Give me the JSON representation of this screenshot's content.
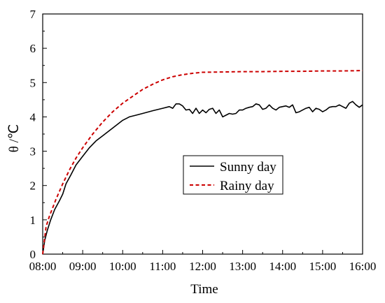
{
  "chart_data": {
    "type": "line",
    "title": "",
    "xlabel": "Time",
    "ylabel": "θ /℃",
    "x_ticks": [
      "08:00",
      "09:00",
      "10:00",
      "11:00",
      "12:00",
      "13:00",
      "14:00",
      "15:00",
      "16:00"
    ],
    "y_ticks": [
      "0",
      "1",
      "2",
      "3",
      "4",
      "5",
      "6",
      "7"
    ],
    "xlim": [
      "08:00",
      "16:00"
    ],
    "ylim": [
      0,
      7
    ],
    "grid": false,
    "legend_position": "center-right",
    "series": [
      {
        "name": "Sunny day",
        "color": "#000000",
        "style": "solid",
        "points": [
          [
            "08:00",
            0.0
          ],
          [
            "08:03",
            0.4
          ],
          [
            "08:07",
            0.7
          ],
          [
            "08:12",
            1.0
          ],
          [
            "08:18",
            1.3
          ],
          [
            "08:25",
            1.55
          ],
          [
            "08:30",
            1.75
          ],
          [
            "08:35",
            2.05
          ],
          [
            "08:42",
            2.3
          ],
          [
            "08:50",
            2.6
          ],
          [
            "09:00",
            2.85
          ],
          [
            "09:10",
            3.1
          ],
          [
            "09:20",
            3.3
          ],
          [
            "09:30",
            3.45
          ],
          [
            "09:40",
            3.6
          ],
          [
            "09:50",
            3.75
          ],
          [
            "10:00",
            3.9
          ],
          [
            "10:10",
            4.0
          ],
          [
            "10:20",
            4.05
          ],
          [
            "10:30",
            4.1
          ],
          [
            "10:45",
            4.18
          ],
          [
            "11:00",
            4.25
          ],
          [
            "11:10",
            4.3
          ],
          [
            "11:15",
            4.25
          ],
          [
            "11:20",
            4.38
          ],
          [
            "11:25",
            4.38
          ],
          [
            "11:30",
            4.32
          ],
          [
            "11:35",
            4.2
          ],
          [
            "11:40",
            4.22
          ],
          [
            "11:45",
            4.1
          ],
          [
            "11:50",
            4.25
          ],
          [
            "11:55",
            4.1
          ],
          [
            "12:00",
            4.2
          ],
          [
            "12:05",
            4.12
          ],
          [
            "12:10",
            4.22
          ],
          [
            "12:15",
            4.25
          ],
          [
            "12:20",
            4.1
          ],
          [
            "12:25",
            4.2
          ],
          [
            "12:30",
            4.0
          ],
          [
            "12:35",
            4.05
          ],
          [
            "12:40",
            4.1
          ],
          [
            "12:45",
            4.08
          ],
          [
            "12:50",
            4.1
          ],
          [
            "12:55",
            4.2
          ],
          [
            "13:00",
            4.2
          ],
          [
            "13:05",
            4.25
          ],
          [
            "13:10",
            4.28
          ],
          [
            "13:15",
            4.3
          ],
          [
            "13:20",
            4.38
          ],
          [
            "13:25",
            4.35
          ],
          [
            "13:30",
            4.22
          ],
          [
            "13:35",
            4.25
          ],
          [
            "13:40",
            4.35
          ],
          [
            "13:45",
            4.25
          ],
          [
            "13:50",
            4.2
          ],
          [
            "13:55",
            4.28
          ],
          [
            "14:00",
            4.3
          ],
          [
            "14:05",
            4.32
          ],
          [
            "14:10",
            4.28
          ],
          [
            "14:15",
            4.35
          ],
          [
            "14:20",
            4.12
          ],
          [
            "14:25",
            4.15
          ],
          [
            "14:30",
            4.2
          ],
          [
            "14:35",
            4.25
          ],
          [
            "14:40",
            4.28
          ],
          [
            "14:45",
            4.15
          ],
          [
            "14:50",
            4.25
          ],
          [
            "14:55",
            4.22
          ],
          [
            "15:00",
            4.15
          ],
          [
            "15:05",
            4.2
          ],
          [
            "15:10",
            4.28
          ],
          [
            "15:15",
            4.3
          ],
          [
            "15:20",
            4.3
          ],
          [
            "15:25",
            4.35
          ],
          [
            "15:30",
            4.3
          ],
          [
            "15:35",
            4.25
          ],
          [
            "15:40",
            4.4
          ],
          [
            "15:45",
            4.45
          ],
          [
            "15:50",
            4.35
          ],
          [
            "15:55",
            4.28
          ],
          [
            "16:00",
            4.35
          ]
        ]
      },
      {
        "name": "Rainy day",
        "color": "#cc0000",
        "style": "dashed",
        "points": [
          [
            "08:00",
            0.0
          ],
          [
            "08:05",
            0.8
          ],
          [
            "08:10",
            1.1
          ],
          [
            "08:20",
            1.6
          ],
          [
            "08:30",
            2.05
          ],
          [
            "08:40",
            2.45
          ],
          [
            "08:50",
            2.8
          ],
          [
            "09:00",
            3.1
          ],
          [
            "09:15",
            3.5
          ],
          [
            "09:30",
            3.85
          ],
          [
            "09:45",
            4.15
          ],
          [
            "10:00",
            4.4
          ],
          [
            "10:15",
            4.6
          ],
          [
            "10:30",
            4.8
          ],
          [
            "10:45",
            4.95
          ],
          [
            "11:00",
            5.08
          ],
          [
            "11:15",
            5.17
          ],
          [
            "11:30",
            5.23
          ],
          [
            "11:45",
            5.27
          ],
          [
            "12:00",
            5.3
          ],
          [
            "12:30",
            5.31
          ],
          [
            "13:00",
            5.32
          ],
          [
            "13:30",
            5.32
          ],
          [
            "14:00",
            5.33
          ],
          [
            "14:30",
            5.33
          ],
          [
            "15:00",
            5.34
          ],
          [
            "15:30",
            5.34
          ],
          [
            "16:00",
            5.35
          ]
        ]
      }
    ]
  }
}
